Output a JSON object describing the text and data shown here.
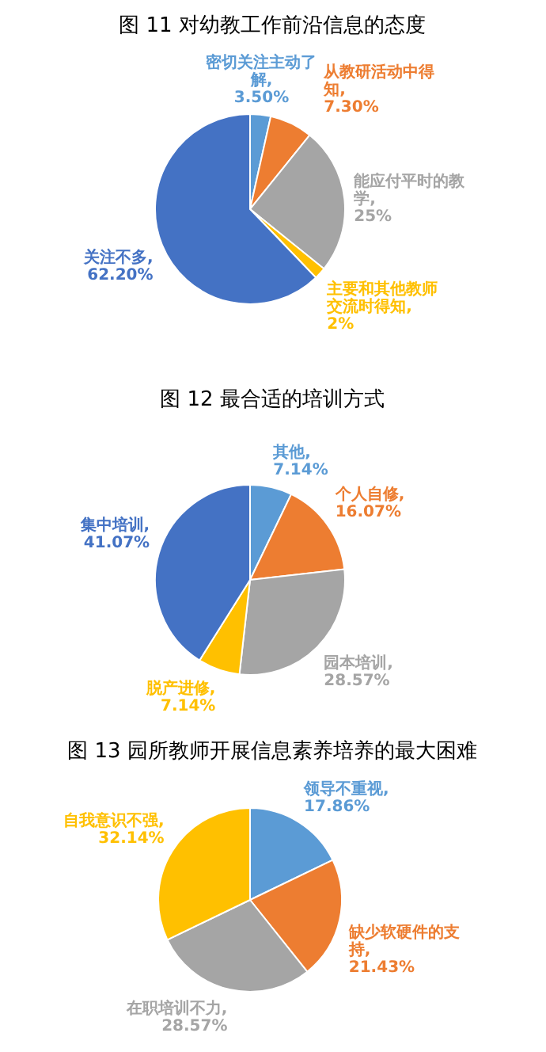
{
  "chart_data": [
    {
      "type": "pie",
      "title": "图 11  对幼教工作前沿信息的态度",
      "categories": [
        "密切关注主动了解",
        "从教研活动中得知",
        "能应付平时的教学",
        "主要和其他教师交流时得知",
        "关注不多"
      ],
      "values": [
        3.5,
        7.3,
        25,
        2,
        62.2
      ],
      "value_labels": [
        ", 3.50%",
        ", 7.30%",
        ", 25%",
        ", 2%",
        ", 62.20%"
      ],
      "colors": [
        "#5b9bd5",
        "#ed7d31",
        "#a5a5a5",
        "#ffc000",
        "#4472c4"
      ]
    },
    {
      "type": "pie",
      "title": "图 12  最合适的培训方式",
      "categories": [
        "其他",
        "个人自修",
        "园本培训",
        "脱产进修",
        "集中培训"
      ],
      "values": [
        7.14,
        16.07,
        28.57,
        7.14,
        41.07
      ],
      "value_labels": [
        ", 7.14%",
        ", 16.07%",
        ", 28.57%",
        ", 7.14%",
        ", 41.07%"
      ],
      "colors": [
        "#5b9bd5",
        "#ed7d31",
        "#a5a5a5",
        "#ffc000",
        "#4472c4"
      ]
    },
    {
      "type": "pie",
      "title": "图 13  园所教师开展信息素养培养的最大困难",
      "categories": [
        "领导不重视",
        "缺少软硬件的支持",
        "在职培训不力",
        "自我意识不强"
      ],
      "values": [
        17.86,
        21.43,
        28.57,
        32.14
      ],
      "value_labels": [
        ", 17.86%",
        ", 21.43%",
        ", 28.57%",
        ", 32.14%"
      ],
      "colors": [
        "#5b9bd5",
        "#ed7d31",
        "#a5a5a5",
        "#ffc000"
      ]
    }
  ]
}
